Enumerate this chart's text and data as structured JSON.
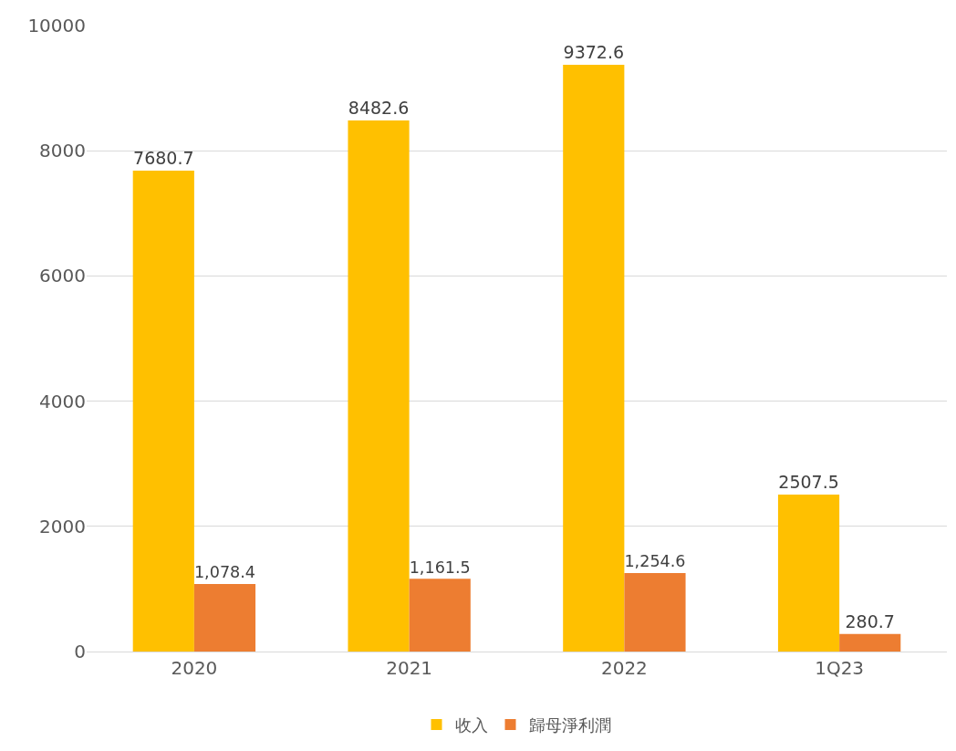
{
  "chart_data": {
    "type": "bar",
    "categories": [
      "2020",
      "2021",
      "2022",
      "1Q23"
    ],
    "series": [
      {
        "name": "收入",
        "color": "#ffc000",
        "values": [
          7680.7,
          8482.6,
          9372.6,
          2507.5
        ],
        "value_labels": [
          "7680.7",
          "8482.6",
          "9372.6",
          "2507.5"
        ]
      },
      {
        "name": "歸母淨利潤",
        "color": "#ed7d31",
        "values": [
          1078.4,
          1161.5,
          1254.6,
          280.7
        ],
        "value_labels": [
          "1,078.4",
          "1,161.5",
          "1,254.6",
          "280.7"
        ]
      }
    ],
    "ylim": [
      0,
      10000
    ],
    "yticks": [
      0,
      2000,
      4000,
      6000,
      8000,
      10000
    ],
    "grid": "y",
    "legend": "bottom"
  }
}
